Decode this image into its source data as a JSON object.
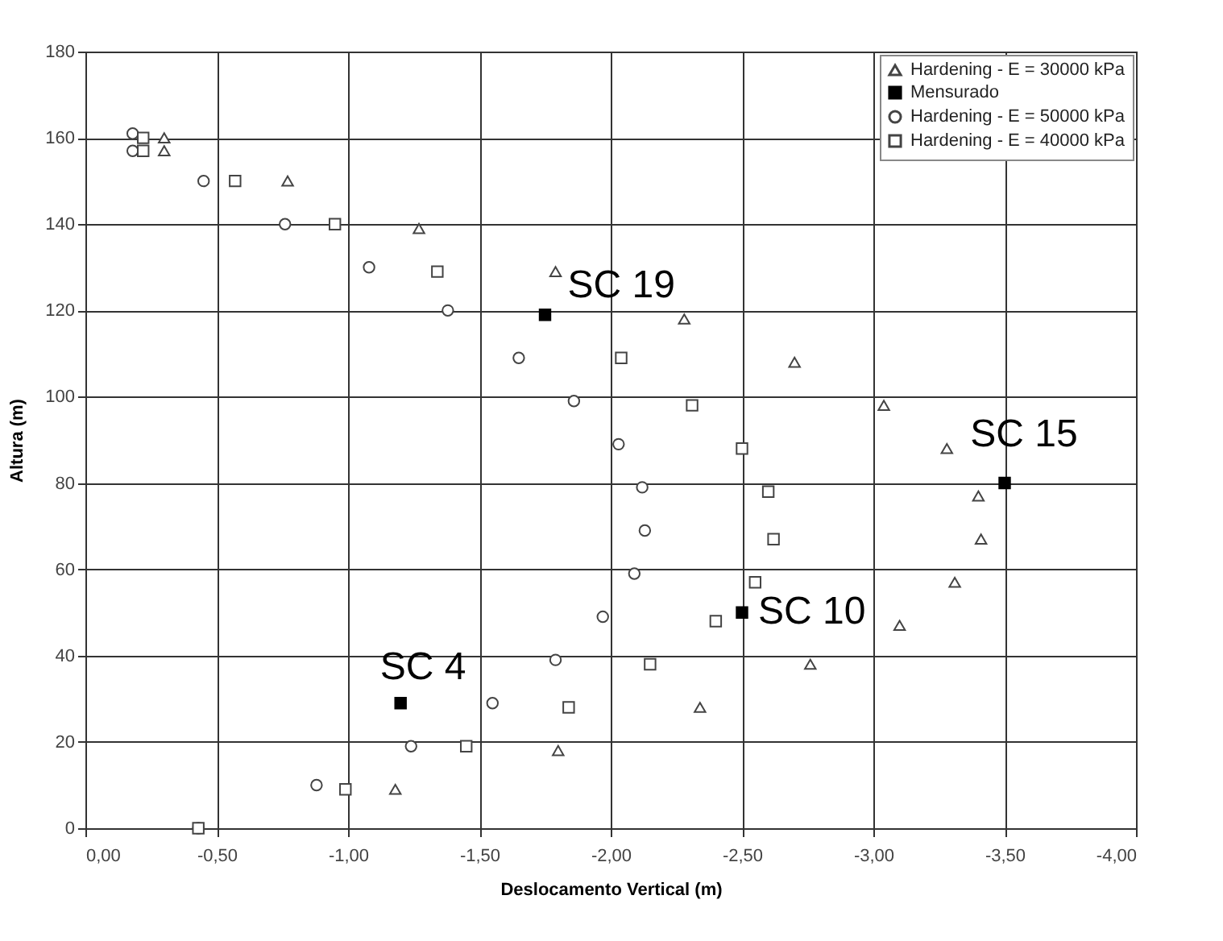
{
  "chart_data": {
    "type": "scatter",
    "xlabel": "Deslocamento Vertical (m)",
    "ylabel": "Altura (m)",
    "xlim": [
      0,
      -4
    ],
    "xticks": [
      {
        "value": 0,
        "label": "0,00"
      },
      {
        "value": -0.5,
        "label": "-0,50"
      },
      {
        "value": -1,
        "label": "-1,00"
      },
      {
        "value": -1.5,
        "label": "-1,50"
      },
      {
        "value": -2,
        "label": "-2,00"
      },
      {
        "value": -2.5,
        "label": "-2,50"
      },
      {
        "value": -3,
        "label": "-3,00"
      },
      {
        "value": -3.5,
        "label": "-3,50"
      },
      {
        "value": -4,
        "label": "-4,00"
      }
    ],
    "ylim": [
      0,
      180
    ],
    "yticks": [
      0,
      20,
      40,
      60,
      80,
      100,
      120,
      140,
      160,
      180
    ],
    "grid": true,
    "legend": "top right",
    "series": [
      {
        "name": "Hardening - E = 30000 kPa",
        "color": "#444444",
        "marker": "triangle",
        "x": [
          -0.3,
          -0.3,
          -0.77,
          -1.27,
          -1.79,
          -2.28,
          -2.7,
          -3.04,
          -3.28,
          -3.4,
          -3.41,
          -3.31,
          -3.1,
          -2.76,
          -2.34,
          -1.8,
          -1.18
        ],
        "values": [
          160,
          157,
          150,
          139,
          129,
          118,
          108,
          98,
          88,
          77,
          67,
          57,
          47,
          38,
          28,
          18,
          9
        ]
      },
      {
        "name": "Mensurado",
        "color": "#000000",
        "marker": "square",
        "x": [
          -1.2,
          -2.5,
          -3.5,
          -1.75
        ],
        "values": [
          29,
          50,
          80,
          119
        ]
      },
      {
        "name": "Hardening - E = 50000 kPa",
        "color": "#444444",
        "marker": "circle",
        "x": [
          -0.18,
          -0.18,
          -0.45,
          -0.76,
          -1.08,
          -1.38,
          -1.65,
          -1.86,
          -2.03,
          -2.12,
          -2.13,
          -2.09,
          -1.97,
          -1.79,
          -1.55,
          -1.24,
          -0.88,
          -0.43
        ],
        "values": [
          161,
          157,
          150,
          140,
          130,
          120,
          109,
          99,
          89,
          79,
          69,
          59,
          49,
          39,
          29,
          19,
          10,
          0
        ]
      },
      {
        "name": "Hardening - E = 40000 kPa",
        "color": "#444444",
        "marker": "square",
        "x": [
          -0.22,
          -0.22,
          -0.57,
          -0.95,
          -1.34,
          -2.04,
          -2.31,
          -2.5,
          -2.6,
          -2.62,
          -2.55,
          -2.4,
          -2.15,
          -1.84,
          -1.45,
          -0.99,
          -0.43
        ],
        "values": [
          160,
          157,
          150,
          140,
          129,
          109,
          98,
          88,
          78,
          67,
          57,
          48,
          38,
          28,
          19,
          9,
          0
        ]
      }
    ],
    "annotations": [
      {
        "text": "SC 4",
        "x": -1.2,
        "y": 29
      },
      {
        "text": "SC 10",
        "x": -2.5,
        "y": 50
      },
      {
        "text": "SC 15",
        "x": -3.5,
        "y": 80
      },
      {
        "text": "SC 19",
        "x": -1.75,
        "y": 119
      }
    ]
  }
}
